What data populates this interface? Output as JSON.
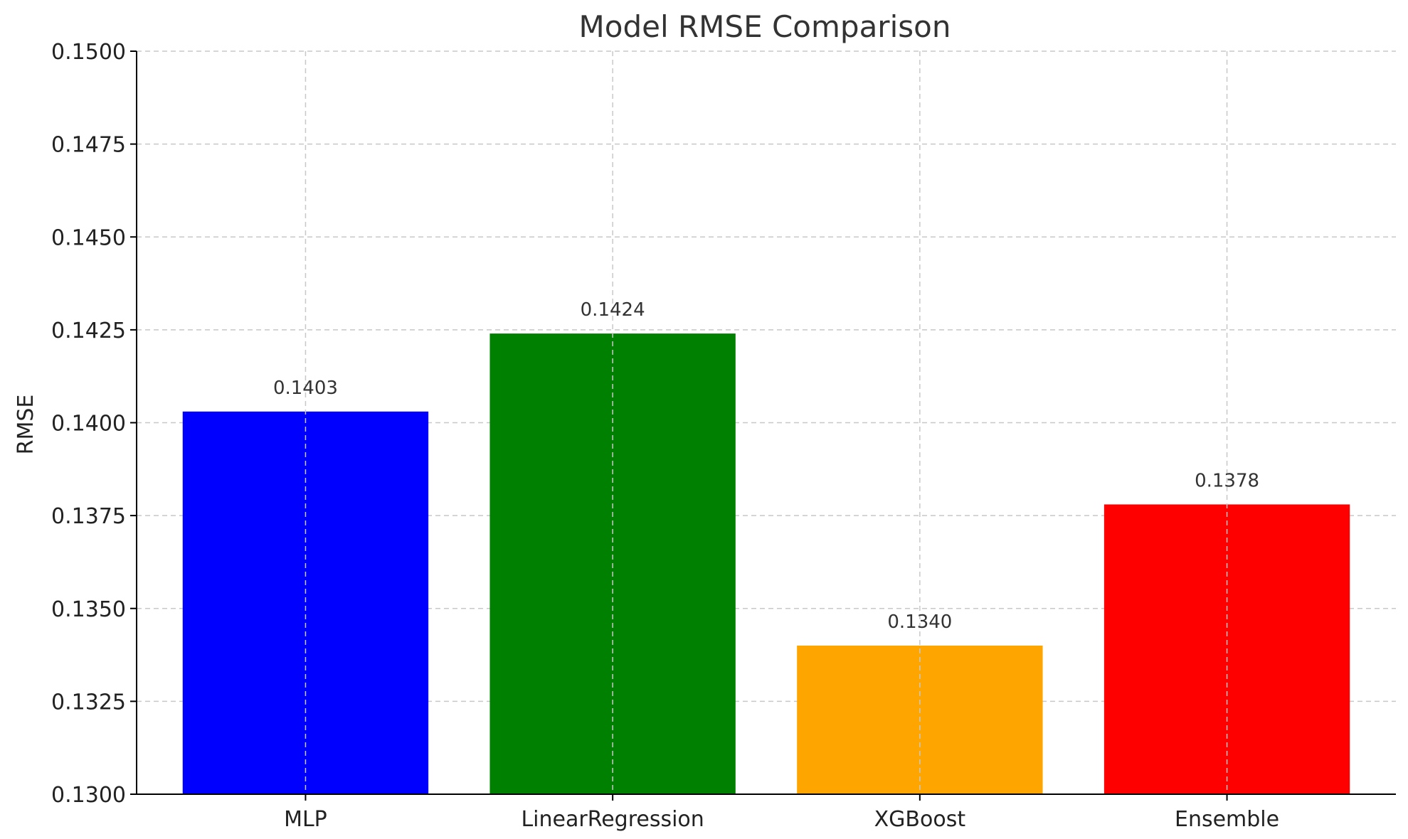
{
  "chart_data": {
    "type": "bar",
    "title": "Model RMSE Comparison",
    "xlabel": "",
    "ylabel": "RMSE",
    "categories": [
      "MLP",
      "LinearRegression",
      "XGBoost",
      "Ensemble"
    ],
    "values": [
      0.1403,
      0.1424,
      0.134,
      0.1378
    ],
    "value_labels": [
      "0.1403",
      "0.1424",
      "0.1340",
      "0.1378"
    ],
    "colors": [
      "#0000ff",
      "#008000",
      "#ffa500",
      "#ff0000"
    ],
    "ylim": [
      0.13,
      0.15
    ],
    "yticks": [
      0.13,
      0.1325,
      0.135,
      0.1375,
      0.14,
      0.1425,
      0.145,
      0.1475,
      0.15
    ],
    "ytick_labels": [
      "0.1300",
      "0.1325",
      "0.1350",
      "0.1375",
      "0.1400",
      "0.1425",
      "0.1450",
      "0.1475",
      "0.1500"
    ],
    "grid": true,
    "legend": "none"
  }
}
